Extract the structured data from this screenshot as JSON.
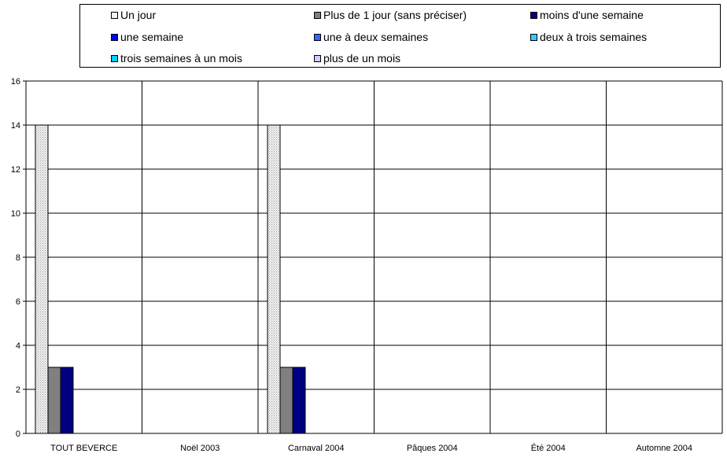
{
  "chart_data": {
    "type": "bar",
    "categories": [
      "TOUT BEVERCE",
      "Noël 2003",
      "Carnaval 2004",
      "Pâques 2004",
      "Été 2004",
      "Automne 2004"
    ],
    "ylim": [
      0,
      16
    ],
    "yticks": [
      0,
      2,
      4,
      6,
      8,
      10,
      12,
      14,
      16
    ],
    "grid": true,
    "legend_position": "top",
    "series": [
      {
        "name": "Un jour",
        "color": "#f2f2f2",
        "pattern": "dotted",
        "values": [
          14,
          0,
          14,
          0,
          0,
          0
        ]
      },
      {
        "name": "Plus de 1 jour (sans préciser)",
        "color": "#808080",
        "values": [
          3,
          0,
          3,
          0,
          0,
          0
        ]
      },
      {
        "name": "moins d'une semaine",
        "color": "#000080",
        "values": [
          3,
          0,
          3,
          0,
          0,
          0
        ]
      },
      {
        "name": "une semaine",
        "color": "#0000ff",
        "values": [
          0,
          0,
          0,
          0,
          0,
          0
        ]
      },
      {
        "name": "une à deux semaines",
        "color": "#3366ff",
        "values": [
          0,
          0,
          0,
          0,
          0,
          0
        ]
      },
      {
        "name": "deux à trois semaines",
        "color": "#33ccff",
        "values": [
          0,
          0,
          0,
          0,
          0,
          0
        ]
      },
      {
        "name": "trois semaines à un mois",
        "color": "#00ccff",
        "values": [
          0,
          0,
          0,
          0,
          0,
          0
        ]
      },
      {
        "name": "plus de un mois",
        "color": "#ccccff",
        "values": [
          0,
          0,
          0,
          0,
          0,
          0
        ]
      }
    ]
  }
}
